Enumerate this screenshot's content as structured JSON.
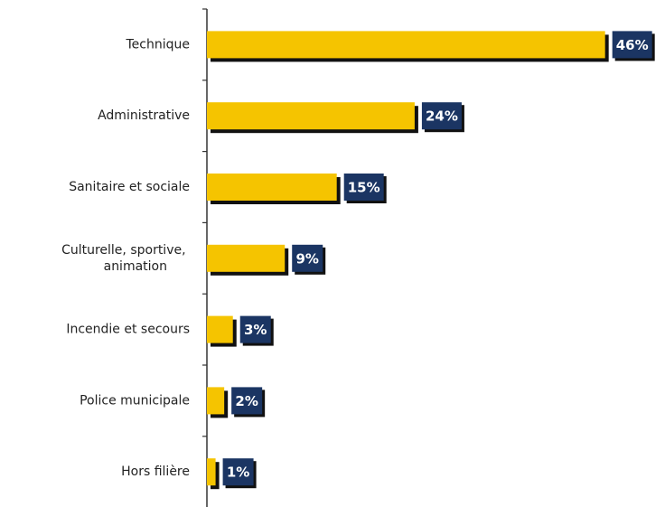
{
  "chart_data": {
    "type": "bar",
    "orientation": "horizontal",
    "categories": [
      "Technique",
      "Administrative",
      "Sanitaire et sociale",
      "Culturelle, sportive, animation",
      "Incendie et secours",
      "Police municipale",
      "Hors filière"
    ],
    "values": [
      46,
      24,
      15,
      9,
      3,
      2,
      1
    ],
    "value_labels": [
      "46%",
      "24%",
      "15%",
      "9%",
      "3%",
      "2%",
      "1%"
    ],
    "color": "#f5c400",
    "label_color": "#1b3563"
  }
}
